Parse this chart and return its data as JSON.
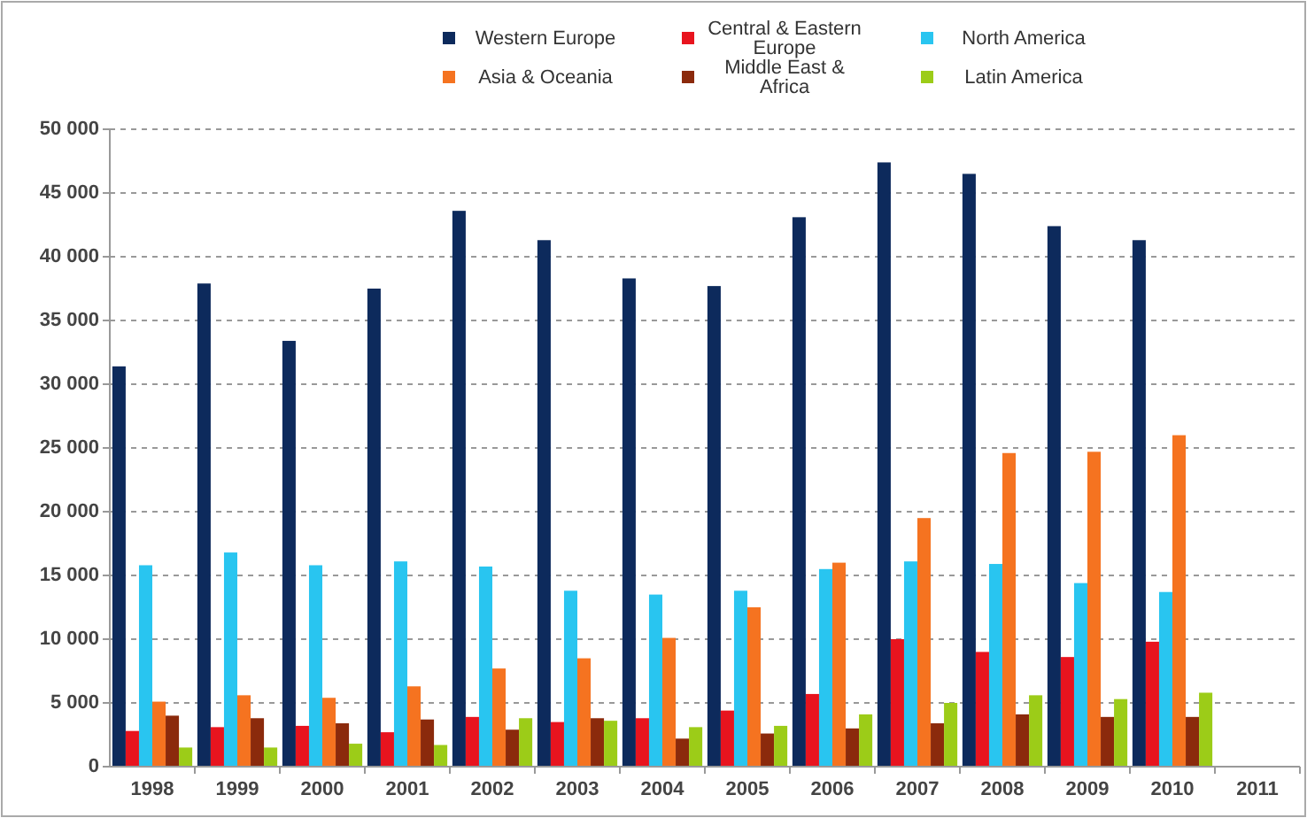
{
  "chart_data": {
    "type": "bar",
    "categories": [
      "1998",
      "1999",
      "2000",
      "2001",
      "2002",
      "2003",
      "2004",
      "2005",
      "2006",
      "2007",
      "2008",
      "2009",
      "2010",
      "2011"
    ],
    "series": [
      {
        "name": "Western Europe",
        "color": "#0d2a5c",
        "values": [
          31400,
          37900,
          33400,
          37500,
          43600,
          41300,
          38300,
          37700,
          43100,
          47400,
          46500,
          42400,
          41300,
          null
        ]
      },
      {
        "name": "Central & Eastern Europe",
        "color": "#e8141e",
        "values": [
          2800,
          3100,
          3200,
          2700,
          3900,
          3500,
          3800,
          4400,
          5700,
          10000,
          9000,
          8600,
          9800,
          null
        ]
      },
      {
        "name": "North America",
        "color": "#29c5f0",
        "values": [
          15800,
          16800,
          15800,
          16100,
          15700,
          13800,
          13500,
          13800,
          15500,
          16100,
          15900,
          14400,
          13700,
          null
        ]
      },
      {
        "name": "Asia & Oceania",
        "color": "#f57320",
        "values": [
          5100,
          5600,
          5400,
          6300,
          7700,
          8500,
          10100,
          12500,
          16000,
          19500,
          24600,
          24700,
          26000,
          null
        ]
      },
      {
        "name": "Middle East & Africa",
        "color": "#8b2a0c",
        "values": [
          4000,
          3800,
          3400,
          3700,
          2900,
          3800,
          2200,
          2600,
          3000,
          3400,
          4100,
          3900,
          3900,
          null
        ]
      },
      {
        "name": "Latin America",
        "color": "#9ccc18",
        "values": [
          1500,
          1500,
          1800,
          1700,
          3800,
          3600,
          3100,
          3200,
          4100,
          5000,
          5600,
          5300,
          5800,
          null
        ]
      }
    ],
    "ylim": [
      0,
      50000
    ],
    "yticks": [
      0,
      {
        "value": 5000,
        "label": "5 000"
      },
      {
        "value": 10000,
        "label": "10 000"
      },
      {
        "value": 15000,
        "label": "15 000"
      },
      {
        "value": 20000,
        "label": "20 000"
      },
      {
        "value": 25000,
        "label": "25 000"
      },
      {
        "value": 30000,
        "label": "30 000"
      },
      {
        "value": 35000,
        "label": "35 000"
      },
      {
        "value": 40000,
        "label": "40 000"
      },
      {
        "value": 45000,
        "label": "45 000"
      },
      {
        "value": 50000,
        "label": "50 000"
      }
    ],
    "grid": "y",
    "legend": "top"
  }
}
